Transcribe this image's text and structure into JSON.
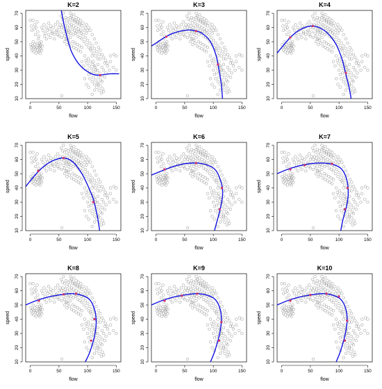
{
  "chart_data": [
    {
      "type": "scatter",
      "title": "K=2",
      "xlabel": "flow",
      "ylabel": "speed",
      "xlim": [
        -8,
        158
      ],
      "ylim": [
        10,
        72
      ],
      "xticks": [
        0,
        50,
        100,
        150
      ],
      "yticks": [
        10,
        20,
        30,
        40,
        50,
        60,
        70
      ],
      "curve": [
        [
          54,
          72
        ],
        [
          60,
          60
        ],
        [
          70,
          45
        ],
        [
          80,
          37
        ],
        [
          90,
          32
        ],
        [
          100,
          29
        ],
        [
          110,
          27
        ],
        [
          120,
          26.5
        ],
        [
          130,
          27
        ],
        [
          140,
          27.5
        ],
        [
          155,
          27.5
        ]
      ],
      "knots": [
        [
          122,
          26.5
        ]
      ]
    },
    {
      "type": "scatter",
      "title": "K=3",
      "xlabel": "flow",
      "ylabel": "speed",
      "xlim": [
        -8,
        158
      ],
      "ylim": [
        10,
        72
      ],
      "xticks": [
        0,
        50,
        100,
        150
      ],
      "yticks": [
        10,
        20,
        30,
        40,
        50,
        60,
        70
      ],
      "curve": [
        [
          -8,
          47
        ],
        [
          0,
          49
        ],
        [
          15,
          53
        ],
        [
          30,
          56
        ],
        [
          50,
          58
        ],
        [
          65,
          58
        ],
        [
          80,
          56
        ],
        [
          95,
          50
        ],
        [
          105,
          40
        ],
        [
          110,
          30
        ],
        [
          114,
          20
        ],
        [
          116,
          10
        ]
      ],
      "knots": [
        [
          18,
          53.5
        ],
        [
          70,
          57.5
        ],
        [
          108,
          34
        ]
      ]
    },
    {
      "type": "scatter",
      "title": "K=4",
      "xlabel": "flow",
      "ylabel": "speed",
      "xlim": [
        -8,
        158
      ],
      "ylim": [
        10,
        72
      ],
      "xticks": [
        0,
        50,
        100,
        150
      ],
      "yticks": [
        10,
        20,
        30,
        40,
        50,
        60,
        70
      ],
      "curve": [
        [
          -8,
          42
        ],
        [
          0,
          46
        ],
        [
          15,
          53
        ],
        [
          30,
          58
        ],
        [
          50,
          61
        ],
        [
          65,
          60
        ],
        [
          80,
          56
        ],
        [
          95,
          48
        ],
        [
          105,
          38
        ],
        [
          112,
          27
        ],
        [
          118,
          17
        ],
        [
          121,
          10
        ]
      ],
      "knots": [
        [
          15,
          53
        ],
        [
          54,
          61
        ],
        [
          112,
          28
        ]
      ]
    },
    {
      "type": "scatter",
      "title": "K=5",
      "xlabel": "flow",
      "ylabel": "speed",
      "xlim": [
        -8,
        158
      ],
      "ylim": [
        10,
        72
      ],
      "xticks": [
        0,
        50,
        100,
        150
      ],
      "yticks": [
        10,
        20,
        30,
        40,
        50,
        60,
        70
      ],
      "curve": [
        [
          -8,
          41
        ],
        [
          0,
          45
        ],
        [
          15,
          52
        ],
        [
          30,
          57
        ],
        [
          45,
          60
        ],
        [
          60,
          61
        ],
        [
          75,
          58
        ],
        [
          90,
          50
        ],
        [
          100,
          42
        ],
        [
          110,
          32
        ],
        [
          117,
          20
        ],
        [
          121,
          10
        ]
      ],
      "knots": [
        [
          14,
          52
        ],
        [
          58,
          61
        ],
        [
          110,
          30
        ]
      ]
    },
    {
      "type": "scatter",
      "title": "K=6",
      "xlabel": "flow",
      "ylabel": "speed",
      "xlim": [
        -8,
        158
      ],
      "ylim": [
        10,
        72
      ],
      "xticks": [
        0,
        50,
        100,
        150
      ],
      "yticks": [
        10,
        20,
        30,
        40,
        50,
        60,
        70
      ],
      "curve": [
        [
          -8,
          49
        ],
        [
          10,
          52
        ],
        [
          30,
          55
        ],
        [
          50,
          57
        ],
        [
          70,
          57.5
        ],
        [
          90,
          56
        ],
        [
          105,
          52
        ],
        [
          115,
          42
        ],
        [
          116,
          34
        ],
        [
          112,
          25
        ],
        [
          106,
          16
        ],
        [
          102,
          10
        ]
      ],
      "knots": [
        [
          15,
          53
        ],
        [
          70,
          57.5
        ],
        [
          115,
          40
        ],
        [
          111,
          25
        ]
      ]
    },
    {
      "type": "scatter",
      "title": "K=7",
      "xlabel": "flow",
      "ylabel": "speed",
      "xlim": [
        -8,
        158
      ],
      "ylim": [
        10,
        72
      ],
      "xticks": [
        0,
        50,
        100,
        150
      ],
      "yticks": [
        10,
        20,
        30,
        40,
        50,
        60,
        70
      ],
      "curve": [
        [
          -8,
          50
        ],
        [
          10,
          53
        ],
        [
          30,
          55.5
        ],
        [
          50,
          57
        ],
        [
          70,
          57.5
        ],
        [
          90,
          56.5
        ],
        [
          105,
          53
        ],
        [
          114,
          45
        ],
        [
          116,
          35
        ],
        [
          113,
          27
        ],
        [
          107,
          18
        ],
        [
          103,
          10
        ]
      ],
      "knots": [
        [
          15,
          53
        ],
        [
          40,
          56
        ],
        [
          88,
          57
        ],
        [
          115,
          40
        ],
        [
          110,
          25
        ]
      ]
    },
    {
      "type": "scatter",
      "title": "K=8",
      "xlabel": "flow",
      "ylabel": "speed",
      "xlim": [
        -8,
        158
      ],
      "ylim": [
        10,
        72
      ],
      "xticks": [
        0,
        50,
        100,
        150
      ],
      "yticks": [
        10,
        20,
        30,
        40,
        50,
        60,
        70
      ],
      "curve": [
        [
          -8,
          50
        ],
        [
          10,
          53
        ],
        [
          30,
          55.5
        ],
        [
          50,
          57
        ],
        [
          70,
          58
        ],
        [
          88,
          57
        ],
        [
          103,
          54
        ],
        [
          112,
          47
        ],
        [
          115,
          38
        ],
        [
          112,
          28
        ],
        [
          104,
          17
        ],
        [
          96,
          10
        ]
      ],
      "knots": [
        [
          15,
          53
        ],
        [
          58,
          57.5
        ],
        [
          80,
          58
        ],
        [
          112,
          40
        ],
        [
          106,
          25
        ]
      ]
    },
    {
      "type": "scatter",
      "title": "K=9",
      "xlabel": "flow",
      "ylabel": "speed",
      "xlim": [
        -8,
        158
      ],
      "ylim": [
        10,
        72
      ],
      "xticks": [
        0,
        50,
        100,
        150
      ],
      "yticks": [
        10,
        20,
        30,
        40,
        50,
        60,
        70
      ],
      "curve": [
        [
          -8,
          50
        ],
        [
          10,
          53
        ],
        [
          30,
          55.5
        ],
        [
          50,
          57
        ],
        [
          70,
          58
        ],
        [
          88,
          57
        ],
        [
          103,
          54
        ],
        [
          112,
          47
        ],
        [
          114,
          38
        ],
        [
          110,
          28
        ],
        [
          102,
          17
        ],
        [
          95,
          10
        ]
      ],
      "knots": [
        [
          15,
          53
        ],
        [
          45,
          56.5
        ],
        [
          72,
          58
        ],
        [
          114,
          38
        ],
        [
          110,
          25
        ]
      ]
    },
    {
      "type": "scatter",
      "title": "K=10",
      "xlabel": "flow",
      "ylabel": "speed",
      "xlim": [
        -8,
        158
      ],
      "ylim": [
        10,
        72
      ],
      "xticks": [
        0,
        50,
        100,
        150
      ],
      "yticks": [
        10,
        20,
        30,
        40,
        50,
        60,
        70
      ],
      "curve": [
        [
          -8,
          50
        ],
        [
          10,
          53
        ],
        [
          30,
          55.5
        ],
        [
          50,
          57
        ],
        [
          70,
          58
        ],
        [
          88,
          57
        ],
        [
          103,
          54
        ],
        [
          112,
          47
        ],
        [
          114,
          38
        ],
        [
          110,
          28
        ],
        [
          102,
          17
        ],
        [
          95,
          10
        ]
      ],
      "knots": [
        [
          15,
          53
        ],
        [
          50,
          57
        ],
        [
          78,
          58
        ],
        [
          100,
          56
        ],
        [
          114,
          39
        ],
        [
          110,
          25
        ]
      ]
    }
  ],
  "points": [
    [
      0,
      65
    ],
    [
      2,
      61
    ],
    [
      3,
      58
    ],
    [
      5,
      65
    ],
    [
      7,
      59
    ],
    [
      8,
      62
    ],
    [
      9,
      55
    ],
    [
      10,
      60
    ],
    [
      12,
      64
    ],
    [
      13,
      57
    ],
    [
      14,
      52
    ],
    [
      15,
      54
    ],
    [
      16,
      49
    ],
    [
      17,
      47
    ],
    [
      18,
      45
    ],
    [
      19,
      50
    ],
    [
      20,
      44
    ],
    [
      21,
      47
    ],
    [
      1,
      48
    ],
    [
      2,
      46
    ],
    [
      3,
      44
    ],
    [
      4,
      47
    ],
    [
      5,
      50
    ],
    [
      6,
      43
    ],
    [
      7,
      46
    ],
    [
      8,
      48
    ],
    [
      9,
      45
    ],
    [
      10,
      42
    ],
    [
      11,
      46
    ],
    [
      12,
      49
    ],
    [
      13,
      44
    ],
    [
      14,
      47
    ],
    [
      15,
      43
    ],
    [
      16,
      46
    ],
    [
      17,
      42
    ],
    [
      18,
      48
    ],
    [
      20,
      60
    ],
    [
      22,
      58
    ],
    [
      24,
      62
    ],
    [
      26,
      56
    ],
    [
      28,
      60
    ],
    [
      30,
      58
    ],
    [
      32,
      63
    ],
    [
      34,
      59
    ],
    [
      36,
      61
    ],
    [
      38,
      57
    ],
    [
      40,
      60
    ],
    [
      42,
      55
    ],
    [
      44,
      62
    ],
    [
      46,
      58
    ],
    [
      48,
      64
    ],
    [
      50,
      60
    ],
    [
      52,
      62
    ],
    [
      25,
      54
    ],
    [
      28,
      52
    ],
    [
      32,
      55
    ],
    [
      35,
      53
    ],
    [
      38,
      56
    ],
    [
      42,
      52
    ],
    [
      45,
      57
    ],
    [
      48,
      55
    ],
    [
      50,
      54
    ],
    [
      52,
      57
    ],
    [
      55,
      53
    ],
    [
      58,
      56
    ],
    [
      60,
      54
    ],
    [
      62,
      58
    ],
    [
      64,
      52
    ],
    [
      66,
      55
    ],
    [
      68,
      57
    ],
    [
      54,
      68
    ],
    [
      56,
      66
    ],
    [
      58,
      70
    ],
    [
      60,
      65
    ],
    [
      62,
      67
    ],
    [
      64,
      63
    ],
    [
      66,
      66
    ],
    [
      68,
      64
    ],
    [
      70,
      67
    ],
    [
      72,
      62
    ],
    [
      74,
      65
    ],
    [
      76,
      61
    ],
    [
      78,
      64
    ],
    [
      80,
      60
    ],
    [
      82,
      63
    ],
    [
      84,
      59
    ],
    [
      86,
      62
    ],
    [
      88,
      58
    ],
    [
      55,
      60
    ],
    [
      57,
      62
    ],
    [
      59,
      59
    ],
    [
      61,
      61
    ],
    [
      63,
      57
    ],
    [
      65,
      60
    ],
    [
      67,
      58
    ],
    [
      69,
      61
    ],
    [
      71,
      56
    ],
    [
      73,
      59
    ],
    [
      75,
      55
    ],
    [
      77,
      58
    ],
    [
      79,
      56
    ],
    [
      81,
      57
    ],
    [
      83,
      54
    ],
    [
      85,
      57
    ],
    [
      87,
      53
    ],
    [
      89,
      56
    ],
    [
      60,
      50
    ],
    [
      62,
      52
    ],
    [
      64,
      48
    ],
    [
      66,
      51
    ],
    [
      68,
      49
    ],
    [
      70,
      53
    ],
    [
      72,
      47
    ],
    [
      74,
      50
    ],
    [
      76,
      46
    ],
    [
      78,
      49
    ],
    [
      80,
      45
    ],
    [
      82,
      48
    ],
    [
      84,
      44
    ],
    [
      86,
      47
    ],
    [
      88,
      43
    ],
    [
      90,
      46
    ],
    [
      70,
      70
    ],
    [
      72,
      68
    ],
    [
      74,
      66
    ],
    [
      76,
      69
    ],
    [
      78,
      65
    ],
    [
      80,
      67
    ],
    [
      82,
      64
    ],
    [
      84,
      66
    ],
    [
      86,
      63
    ],
    [
      88,
      65
    ],
    [
      90,
      61
    ],
    [
      92,
      63
    ],
    [
      94,
      58
    ],
    [
      96,
      60
    ],
    [
      98,
      56
    ],
    [
      100,
      58
    ],
    [
      90,
      52
    ],
    [
      92,
      55
    ],
    [
      94,
      50
    ],
    [
      96,
      53
    ],
    [
      98,
      48
    ],
    [
      100,
      51
    ],
    [
      102,
      46
    ],
    [
      104,
      49
    ],
    [
      106,
      44
    ],
    [
      108,
      47
    ],
    [
      110,
      42
    ],
    [
      112,
      45
    ],
    [
      114,
      40
    ],
    [
      116,
      43
    ],
    [
      118,
      38
    ],
    [
      120,
      41
    ],
    [
      95,
      40
    ],
    [
      97,
      37
    ],
    [
      99,
      35
    ],
    [
      101,
      38
    ],
    [
      103,
      33
    ],
    [
      105,
      36
    ],
    [
      107,
      31
    ],
    [
      109,
      34
    ],
    [
      111,
      29
    ],
    [
      113,
      32
    ],
    [
      115,
      27
    ],
    [
      117,
      30
    ],
    [
      119,
      25
    ],
    [
      121,
      28
    ],
    [
      123,
      23
    ],
    [
      125,
      26
    ],
    [
      100,
      30
    ],
    [
      102,
      27
    ],
    [
      104,
      24
    ],
    [
      106,
      28
    ],
    [
      108,
      22
    ],
    [
      110,
      25
    ],
    [
      112,
      20
    ],
    [
      114,
      23
    ],
    [
      116,
      18
    ],
    [
      118,
      21
    ],
    [
      120,
      16
    ],
    [
      122,
      19
    ],
    [
      124,
      14
    ],
    [
      126,
      17
    ],
    [
      128,
      15
    ],
    [
      105,
      45
    ],
    [
      108,
      40
    ],
    [
      110,
      36
    ],
    [
      112,
      33
    ],
    [
      114,
      30
    ],
    [
      118,
      34
    ],
    [
      122,
      38
    ],
    [
      125,
      32
    ],
    [
      128,
      30
    ],
    [
      130,
      35
    ],
    [
      132,
      28
    ],
    [
      135,
      33
    ],
    [
      138,
      30
    ],
    [
      140,
      36
    ],
    [
      145,
      32
    ],
    [
      150,
      30
    ],
    [
      98,
      62
    ],
    [
      102,
      60
    ],
    [
      105,
      58
    ],
    [
      108,
      55
    ],
    [
      112,
      52
    ],
    [
      115,
      49
    ],
    [
      119,
      46
    ],
    [
      122,
      44
    ],
    [
      125,
      41
    ],
    [
      128,
      39
    ],
    [
      131,
      37
    ],
    [
      134,
      35
    ],
    [
      55,
      12
    ],
    [
      108,
      13
    ],
    [
      112,
      16
    ],
    [
      118,
      20
    ],
    [
      125,
      22
    ],
    [
      130,
      25
    ],
    [
      140,
      40
    ],
    [
      146,
      41
    ],
    [
      150,
      40
    ],
    [
      95,
      24
    ],
    [
      98,
      20
    ],
    [
      102,
      18
    ],
    [
      90,
      36
    ],
    [
      93,
      33
    ]
  ]
}
